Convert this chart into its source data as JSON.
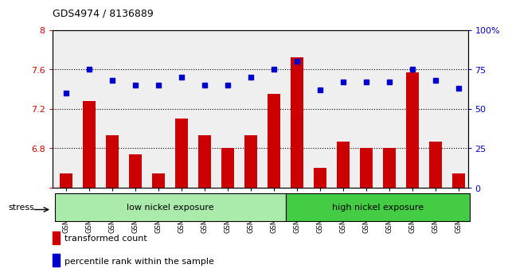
{
  "title": "GDS4974 / 8136889",
  "samples": [
    "GSM992693",
    "GSM992694",
    "GSM992695",
    "GSM992696",
    "GSM992697",
    "GSM992698",
    "GSM992699",
    "GSM992700",
    "GSM992701",
    "GSM992702",
    "GSM992703",
    "GSM992704",
    "GSM992705",
    "GSM992706",
    "GSM992707",
    "GSM992708",
    "GSM992709",
    "GSM992710"
  ],
  "bar_values": [
    6.54,
    7.28,
    6.93,
    6.74,
    6.54,
    7.1,
    6.93,
    6.8,
    6.93,
    7.35,
    7.72,
    6.6,
    6.87,
    6.8,
    6.8,
    7.57,
    6.87,
    6.54
  ],
  "dot_values": [
    60,
    75,
    68,
    65,
    65,
    70,
    65,
    65,
    70,
    75,
    80,
    62,
    67,
    67,
    67,
    75,
    68,
    63
  ],
  "bar_color": "#cc0000",
  "dot_color": "#0000cc",
  "ylim_left": [
    6.4,
    8.0
  ],
  "ylim_right": [
    0,
    100
  ],
  "yticks_left": [
    6.4,
    6.8,
    7.2,
    7.6,
    8.0
  ],
  "ytick_labels_left": [
    "",
    "6.8",
    "7.2",
    "7.6",
    "8"
  ],
  "yticks_right": [
    0,
    25,
    50,
    75,
    100
  ],
  "ytick_labels_right": [
    "0",
    "25",
    "50",
    "75",
    "100%"
  ],
  "grid_values": [
    6.8,
    7.2,
    7.6
  ],
  "group1_label": "low nickel exposure",
  "group2_label": "high nickel exposure",
  "group1_count": 10,
  "group2_count": 8,
  "stress_label": "stress",
  "legend1": "transformed count",
  "legend2": "percentile rank within the sample",
  "bar_width": 0.55,
  "bg_plot": "#efefef",
  "bg_group1": "#aaeaaa",
  "bg_group2": "#44cc44",
  "xlim": [
    -0.6,
    17.4
  ]
}
